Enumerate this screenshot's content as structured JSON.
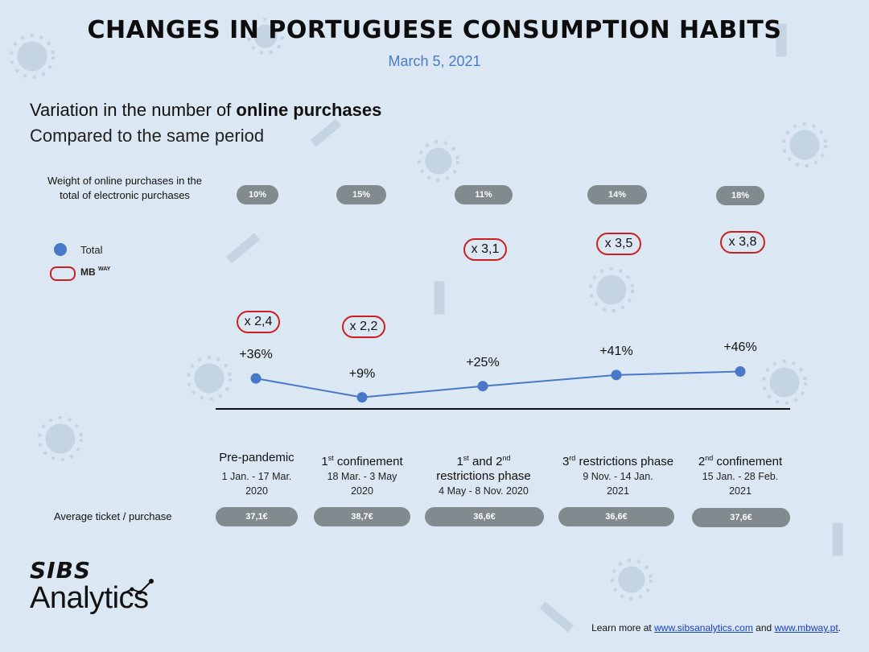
{
  "header": {
    "title": "CHANGES IN PORTUGUESE CONSUMPTION HABITS",
    "date": "March 5, 2021"
  },
  "subtitle": {
    "line1_prefix": "Variation in the number of ",
    "line1_bold": "online purchases",
    "line2": "Compared to the same period"
  },
  "weight_label": "Weight of online purchases in the total of electronic purchases",
  "ticket_label": "Average ticket / purchase",
  "legend": {
    "total": "Total",
    "mbway_main": "MB",
    "mbway_small": "WAY"
  },
  "colors": {
    "line": "#4a78c8",
    "mbway_border": "#cc1f1f",
    "pill": "#808a8f",
    "background": "#dbe7f2"
  },
  "chart_data": {
    "type": "line",
    "categories": [
      "Pre-pandemic",
      "1st confinement",
      "1st and 2nd restrictions phase",
      "3rd restrictions phase",
      "2nd confinement"
    ],
    "series": [
      {
        "name": "Total",
        "values": [
          36,
          9,
          25,
          41,
          46
        ],
        "labels": [
          "+36%",
          "+9%",
          "+25%",
          "+41%",
          "+46%"
        ]
      }
    ],
    "mbway_multipliers": [
      "x 2,4",
      "x 2,2",
      "x 3,1",
      "x 3,5",
      "x 3,8"
    ],
    "online_weight": [
      "10%",
      "15%",
      "11%",
      "14%",
      "18%"
    ],
    "average_ticket": [
      "37,1€",
      "38,7€",
      "36,6€",
      "36,6€",
      "37,6€"
    ],
    "period_dates": [
      [
        "1 Jan. - 17 Mar.",
        "2020"
      ],
      [
        "18 Mar. - 3 May",
        "2020"
      ],
      [
        "4 May - 8 Nov. 2020"
      ],
      [
        "9 Nov. - 14 Jan.",
        "2021"
      ],
      [
        "15 Jan. - 28 Feb.",
        "2021"
      ]
    ]
  },
  "footer": {
    "prefix": "Learn more at ",
    "link1": "www.sibsanalytics.com",
    "middle": " and ",
    "link2": "www.mbway.pt",
    "suffix": "."
  },
  "logo": {
    "top": "SIBS",
    "bottom": "Analytics"
  }
}
